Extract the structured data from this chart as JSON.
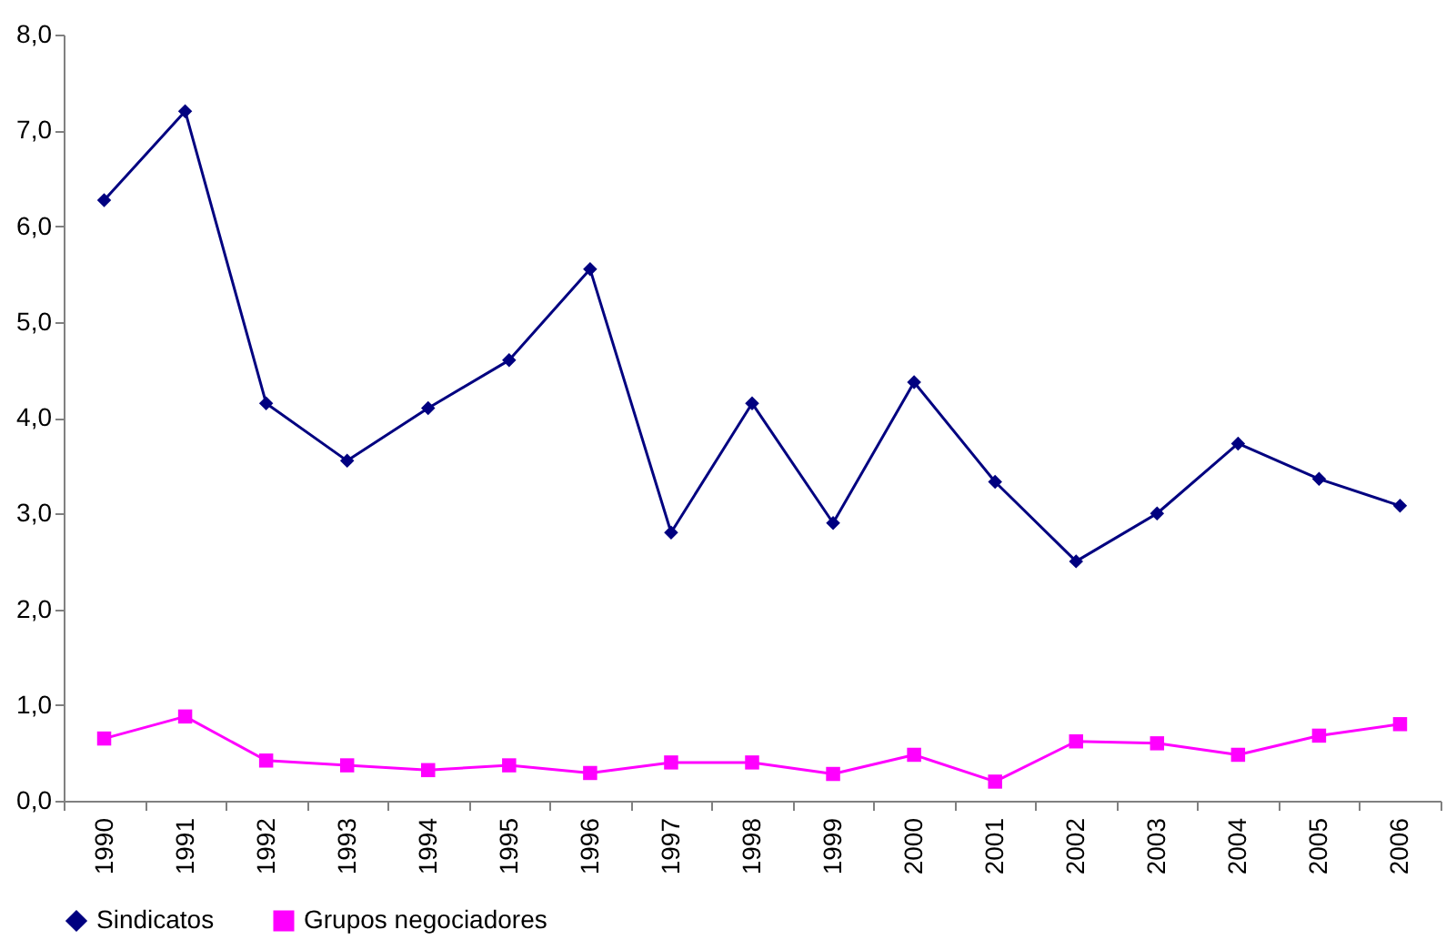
{
  "chart_data": {
    "type": "line",
    "categories": [
      "1990",
      "1991",
      "1992",
      "1993",
      "1994",
      "1995",
      "1996",
      "1997",
      "1998",
      "1999",
      "2000",
      "2001",
      "2002",
      "2003",
      "2004",
      "2005",
      "2006"
    ],
    "series": [
      {
        "name": "Sindicatos",
        "color": "#000080",
        "marker": "diamond",
        "values": [
          6.27,
          7.2,
          4.15,
          3.55,
          4.1,
          4.6,
          5.55,
          2.8,
          4.15,
          2.9,
          4.37,
          3.33,
          2.5,
          3.0,
          3.73,
          3.36,
          3.08
        ]
      },
      {
        "name": "Grupos negociadores",
        "color": "#ff00ff",
        "marker": "square",
        "values": [
          0.65,
          0.88,
          0.42,
          0.37,
          0.32,
          0.37,
          0.29,
          0.4,
          0.4,
          0.28,
          0.48,
          0.2,
          0.62,
          0.6,
          0.48,
          0.68,
          0.8
        ]
      }
    ],
    "ylim": [
      0,
      8
    ],
    "yticks": [
      {
        "value": 0,
        "label": "0,0"
      },
      {
        "value": 1,
        "label": "1,0"
      },
      {
        "value": 2,
        "label": "2,0"
      },
      {
        "value": 3,
        "label": "3,0"
      },
      {
        "value": 4,
        "label": "4,0"
      },
      {
        "value": 5,
        "label": "5,0"
      },
      {
        "value": 6,
        "label": "6,0"
      },
      {
        "value": 7,
        "label": "7,0"
      },
      {
        "value": 8,
        "label": "8,0"
      }
    ],
    "grid": false,
    "legend": "bottom"
  }
}
